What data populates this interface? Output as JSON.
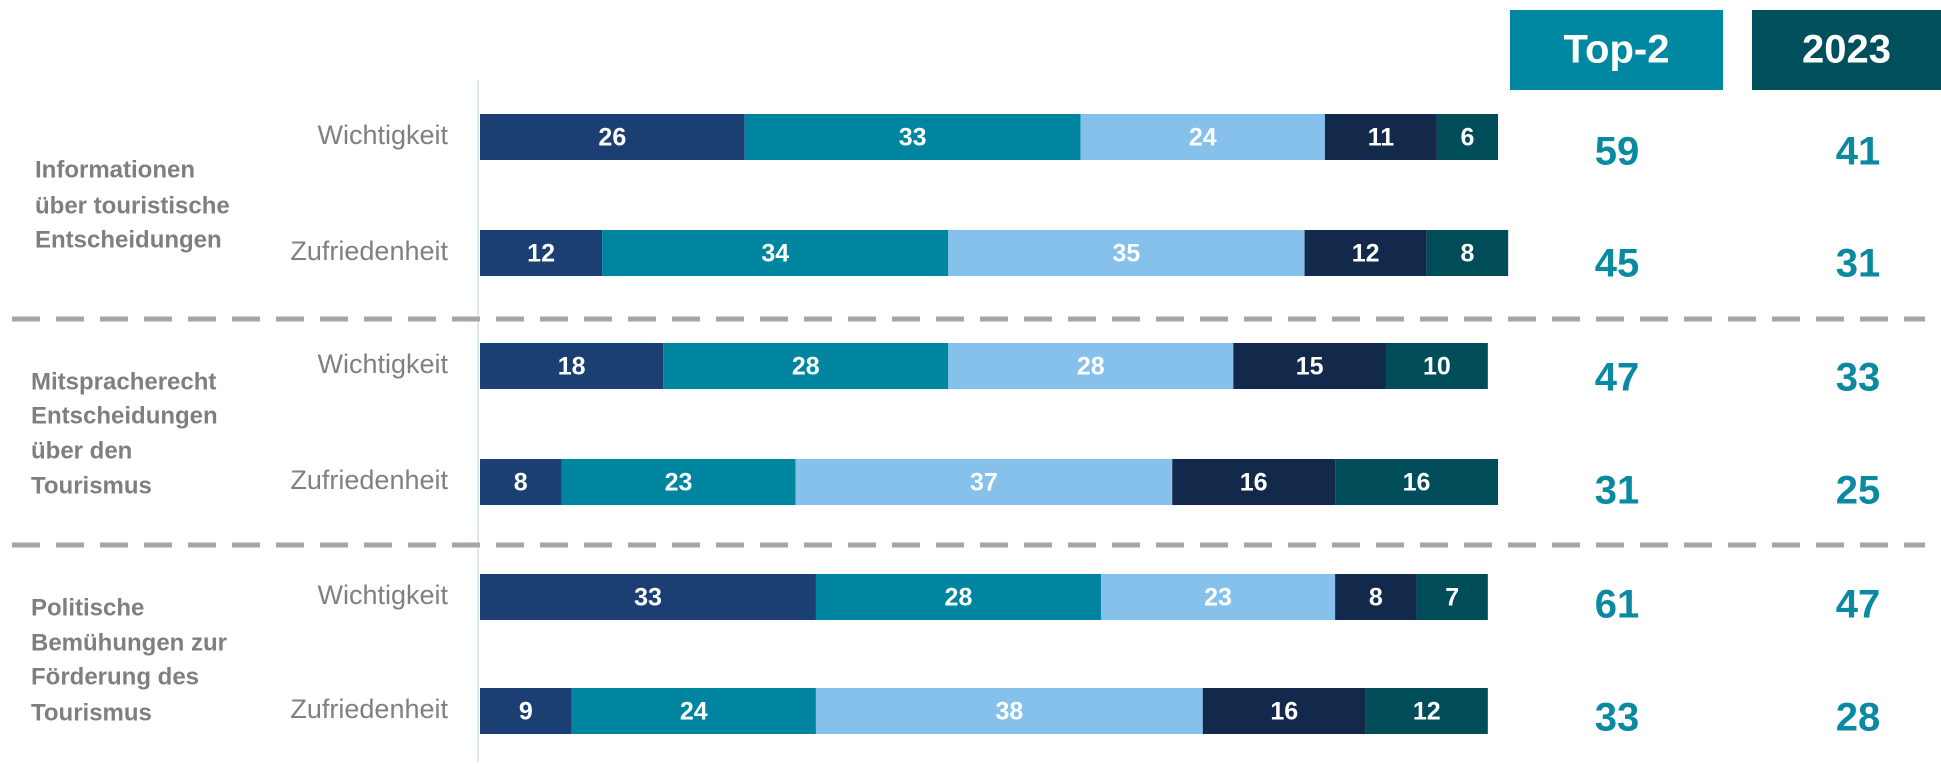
{
  "chart_data": {
    "type": "stacked-bar-horizontal",
    "categories": [
      "Wichtigkeit",
      "Zufriedenheit",
      "Wichtigkeit",
      "Zufriedenheit",
      "Wichtigkeit",
      "Zufriedenheit"
    ],
    "group_labels": [
      [
        "Informationen",
        "über touristische",
        "Entscheidungen"
      ],
      [
        "Mitspracherecht",
        "Entscheidungen",
        "über den",
        "Tourismus"
      ],
      [
        "Politische",
        "Bemühungen zur",
        "Förderung des",
        "Tourismus"
      ]
    ],
    "series": [
      {
        "color": "#1b3f73",
        "values": [
          26,
          12,
          18,
          8,
          33,
          9
        ]
      },
      {
        "color": "#0085a1",
        "values": [
          33,
          34,
          28,
          23,
          28,
          24
        ]
      },
      {
        "color": "#85c1ea",
        "values": [
          24,
          35,
          28,
          37,
          23,
          38
        ]
      },
      {
        "color": "#13294b",
        "values": [
          11,
          12,
          15,
          16,
          8,
          16
        ]
      },
      {
        "color": "#004d5a",
        "values": [
          6,
          8,
          10,
          16,
          7,
          12
        ]
      }
    ],
    "columns": [
      {
        "header": "Top-2",
        "color": "#0088a3",
        "values": [
          59,
          45,
          47,
          31,
          61,
          33
        ]
      },
      {
        "header": "2023",
        "color": "#004f5c",
        "values": [
          41,
          31,
          33,
          25,
          47,
          28
        ]
      }
    ]
  }
}
